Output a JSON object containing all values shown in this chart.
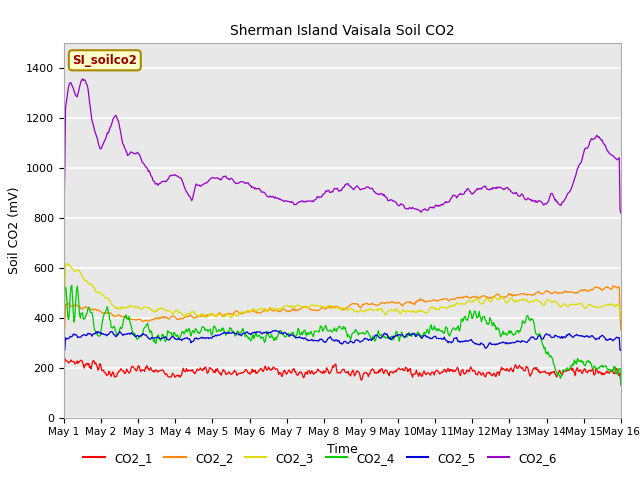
{
  "title": "Sherman Island Vaisala Soil CO2",
  "xlabel": "Time",
  "ylabel": "Soil CO2 (mV)",
  "ylim": [
    0,
    1500
  ],
  "yticks": [
    0,
    200,
    400,
    600,
    800,
    1000,
    1200,
    1400
  ],
  "colors": {
    "CO2_1": "#ff0000",
    "CO2_2": "#ff8800",
    "CO2_3": "#dddd00",
    "CO2_4": "#00cc00",
    "CO2_5": "#0000dd",
    "CO2_6": "#9900cc"
  },
  "annotation_text": "SI_soilco2",
  "annotation_bg": "#ffffcc",
  "annotation_border": "#aa8800",
  "plot_bg": "#e8e8e8",
  "outer_bg": "#ffffff",
  "grid_color": "#ffffff",
  "legend_labels": [
    "CO2_1",
    "CO2_2",
    "CO2_3",
    "CO2_4",
    "CO2_5",
    "CO2_6"
  ]
}
